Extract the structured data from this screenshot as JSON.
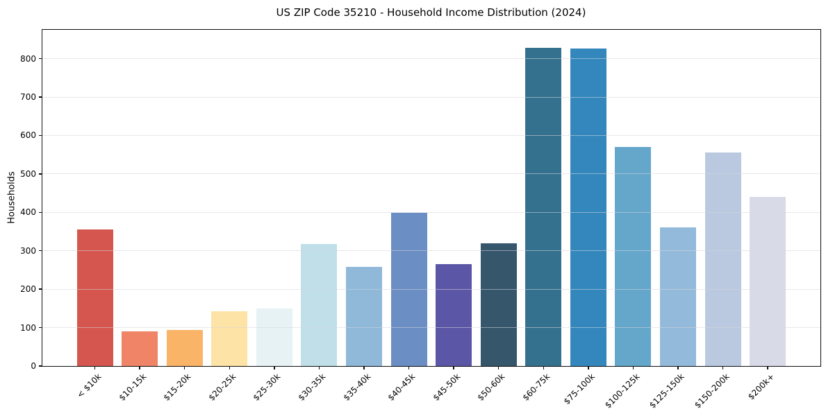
{
  "chart_data": {
    "type": "bar",
    "title": "US ZIP Code 35210 - Household Income Distribution (2024)",
    "xlabel": "",
    "ylabel": "Households",
    "categories": [
      "< $10k",
      "$10-15k",
      "$15-20k",
      "$20-25k",
      "$25-30k",
      "$30-35k",
      "$35-40k",
      "$40-45k",
      "$45-50k",
      "$50-60k",
      "$60-75k",
      "$75-100k",
      "$100-125k",
      "$125-150k",
      "$150-200k",
      "$200k+"
    ],
    "values": [
      355,
      90,
      93,
      143,
      150,
      318,
      258,
      398,
      265,
      320,
      828,
      826,
      570,
      360,
      555,
      440
    ],
    "bar_colors": [
      "#d5564f",
      "#f08466",
      "#f9b468",
      "#fde3a6",
      "#e6f2f3",
      "#c0dfe8",
      "#8fb8d9",
      "#6b8ec4",
      "#5c56a6",
      "#36566b",
      "#34718f",
      "#3487bd",
      "#64a7cb",
      "#94badb",
      "#bac9df",
      "#d8dbe7"
    ],
    "ylim": [
      0,
      875
    ],
    "yticks": [
      0,
      100,
      200,
      300,
      400,
      500,
      600,
      700,
      800
    ],
    "grid": "horizontal",
    "legend": "none",
    "x_tick_rotation_deg": 45,
    "frame": "full-box"
  }
}
